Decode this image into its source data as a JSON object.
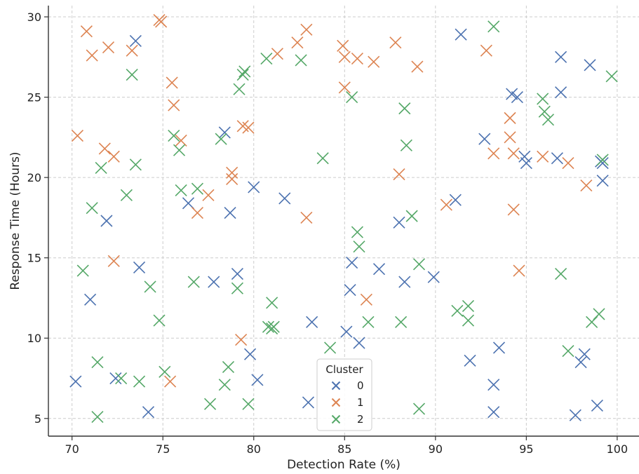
{
  "chart_data": {
    "type": "scatter",
    "title": "",
    "xlabel": "Detection Rate (%)",
    "ylabel": "Response Time (Hours)",
    "xlim": [
      68.7,
      101.2
    ],
    "ylim": [
      3.9,
      30.7
    ],
    "xticks": [
      70,
      75,
      80,
      85,
      90,
      95,
      100
    ],
    "yticks": [
      5,
      10,
      15,
      20,
      25,
      30
    ],
    "grid": true,
    "marker": "x",
    "legend": {
      "title": "Cluster",
      "placement": "bottom-center"
    },
    "series": [
      {
        "name": "0",
        "color": "#4c72b0",
        "points": [
          [
            70.2,
            7.3
          ],
          [
            71.0,
            12.4
          ],
          [
            71.9,
            17.3
          ],
          [
            72.4,
            7.5
          ],
          [
            73.5,
            28.5
          ],
          [
            73.7,
            14.4
          ],
          [
            74.2,
            5.4
          ],
          [
            76.4,
            18.4
          ],
          [
            77.8,
            13.5
          ],
          [
            78.4,
            22.8
          ],
          [
            78.7,
            17.8
          ],
          [
            79.1,
            14.0
          ],
          [
            79.8,
            9.0
          ],
          [
            80.0,
            19.4
          ],
          [
            80.2,
            7.4
          ],
          [
            81.7,
            18.7
          ],
          [
            83.0,
            6.0
          ],
          [
            83.2,
            11.0
          ],
          [
            85.1,
            10.4
          ],
          [
            85.3,
            13.0
          ],
          [
            85.4,
            14.7
          ],
          [
            85.8,
            9.7
          ],
          [
            86.9,
            14.3
          ],
          [
            88.0,
            17.2
          ],
          [
            88.3,
            13.5
          ],
          [
            89.9,
            13.8
          ],
          [
            91.1,
            18.6
          ],
          [
            91.4,
            28.9
          ],
          [
            91.9,
            8.6
          ],
          [
            92.7,
            22.4
          ],
          [
            93.2,
            7.1
          ],
          [
            93.2,
            5.4
          ],
          [
            93.5,
            9.4
          ],
          [
            94.2,
            25.2
          ],
          [
            94.5,
            25.0
          ],
          [
            94.9,
            21.3
          ],
          [
            95.0,
            20.9
          ],
          [
            96.7,
            21.2
          ],
          [
            96.9,
            25.3
          ],
          [
            96.9,
            27.5
          ],
          [
            97.7,
            5.2
          ],
          [
            98.0,
            8.5
          ],
          [
            98.2,
            9.0
          ],
          [
            98.5,
            27.0
          ],
          [
            98.9,
            5.8
          ],
          [
            99.2,
            19.8
          ],
          [
            99.2,
            20.9
          ],
          [
            99.1,
            21.0
          ]
        ]
      },
      {
        "name": "1",
        "color": "#dd8452",
        "points": [
          [
            70.3,
            22.6
          ],
          [
            70.8,
            29.1
          ],
          [
            71.1,
            27.6
          ],
          [
            71.8,
            21.8
          ],
          [
            72.0,
            28.1
          ],
          [
            72.3,
            21.3
          ],
          [
            72.3,
            14.8
          ],
          [
            73.3,
            27.9
          ],
          [
            74.8,
            29.8
          ],
          [
            74.9,
            29.7
          ],
          [
            75.4,
            7.3
          ],
          [
            75.5,
            25.9
          ],
          [
            75.6,
            24.5
          ],
          [
            76.0,
            22.3
          ],
          [
            76.9,
            17.8
          ],
          [
            77.5,
            18.9
          ],
          [
            78.8,
            19.9
          ],
          [
            78.8,
            20.3
          ],
          [
            79.3,
            9.9
          ],
          [
            79.4,
            23.2
          ],
          [
            79.7,
            23.1
          ],
          [
            81.3,
            27.7
          ],
          [
            82.4,
            28.4
          ],
          [
            82.9,
            29.2
          ],
          [
            82.9,
            17.5
          ],
          [
            84.9,
            28.2
          ],
          [
            85.0,
            27.5
          ],
          [
            85.0,
            25.6
          ],
          [
            85.7,
            27.4
          ],
          [
            86.2,
            12.4
          ],
          [
            86.6,
            27.2
          ],
          [
            87.8,
            28.4
          ],
          [
            88.0,
            20.2
          ],
          [
            89.0,
            26.9
          ],
          [
            90.6,
            18.3
          ],
          [
            92.8,
            27.9
          ],
          [
            93.2,
            21.5
          ],
          [
            94.1,
            23.7
          ],
          [
            94.1,
            22.5
          ],
          [
            94.3,
            18.0
          ],
          [
            94.3,
            21.5
          ],
          [
            94.6,
            14.2
          ],
          [
            95.9,
            21.3
          ],
          [
            97.3,
            20.9
          ],
          [
            98.3,
            19.5
          ]
        ]
      },
      {
        "name": "2",
        "color": "#55a868",
        "points": [
          [
            70.6,
            14.2
          ],
          [
            71.1,
            18.1
          ],
          [
            71.4,
            8.5
          ],
          [
            71.4,
            5.1
          ],
          [
            71.6,
            20.6
          ],
          [
            72.7,
            7.5
          ],
          [
            73.0,
            18.9
          ],
          [
            73.3,
            26.4
          ],
          [
            73.5,
            20.8
          ],
          [
            73.7,
            7.3
          ],
          [
            74.3,
            13.2
          ],
          [
            74.8,
            11.1
          ],
          [
            75.1,
            7.9
          ],
          [
            75.6,
            22.6
          ],
          [
            75.9,
            21.7
          ],
          [
            76.0,
            19.2
          ],
          [
            76.7,
            13.5
          ],
          [
            76.9,
            19.3
          ],
          [
            77.6,
            5.9
          ],
          [
            78.2,
            22.4
          ],
          [
            78.4,
            7.1
          ],
          [
            78.6,
            8.2
          ],
          [
            79.1,
            13.1
          ],
          [
            79.2,
            25.5
          ],
          [
            79.4,
            26.4
          ],
          [
            79.5,
            26.6
          ],
          [
            79.7,
            5.9
          ],
          [
            80.7,
            27.4
          ],
          [
            80.8,
            10.7
          ],
          [
            81.0,
            10.6
          ],
          [
            81.1,
            10.7
          ],
          [
            81.0,
            12.2
          ],
          [
            82.6,
            27.3
          ],
          [
            83.8,
            21.2
          ],
          [
            84.2,
            9.4
          ],
          [
            85.4,
            25.0
          ],
          [
            85.7,
            16.6
          ],
          [
            85.8,
            15.7
          ],
          [
            86.3,
            11.0
          ],
          [
            88.1,
            11.0
          ],
          [
            88.3,
            24.3
          ],
          [
            88.4,
            22.0
          ],
          [
            88.7,
            17.6
          ],
          [
            89.1,
            14.6
          ],
          [
            89.1,
            5.6
          ],
          [
            91.2,
            11.7
          ],
          [
            91.8,
            12.0
          ],
          [
            91.8,
            11.1
          ],
          [
            93.2,
            29.4
          ],
          [
            95.9,
            24.9
          ],
          [
            96.0,
            24.1
          ],
          [
            96.2,
            23.6
          ],
          [
            96.9,
            14.0
          ],
          [
            97.3,
            9.2
          ],
          [
            98.6,
            11.0
          ],
          [
            99.0,
            11.5
          ],
          [
            99.2,
            21.1
          ],
          [
            99.7,
            26.3
          ]
        ]
      }
    ]
  }
}
